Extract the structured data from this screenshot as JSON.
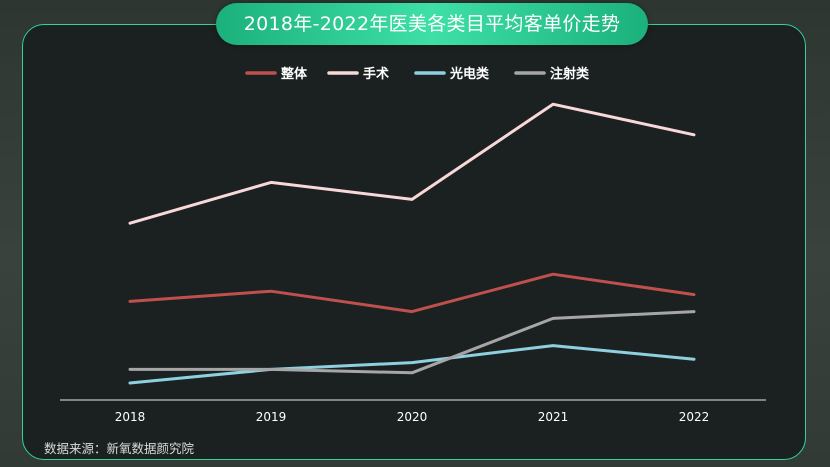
{
  "title": "2018年-2022年医美各类目平均客单价走势",
  "source": "数据来源：新氧数据颜究院",
  "chart_data": {
    "type": "line",
    "x": [
      "2018",
      "2019",
      "2020",
      "2021",
      "2022"
    ],
    "ylim": [
      0,
      100
    ],
    "grid": false,
    "legend": "top-center",
    "series": [
      {
        "name": "整体",
        "color": "#c0504d",
        "values": [
          29,
          32,
          26,
          37,
          31
        ]
      },
      {
        "name": "手术",
        "color": "#f8d8d8",
        "values": [
          52,
          64,
          59,
          87,
          78
        ]
      },
      {
        "name": "光电类",
        "color": "#8ecfe0",
        "values": [
          5,
          9,
          11,
          16,
          12
        ]
      },
      {
        "name": "注射类",
        "color": "#a6a6a6",
        "values": [
          9,
          9,
          8,
          24,
          26
        ]
      }
    ]
  }
}
